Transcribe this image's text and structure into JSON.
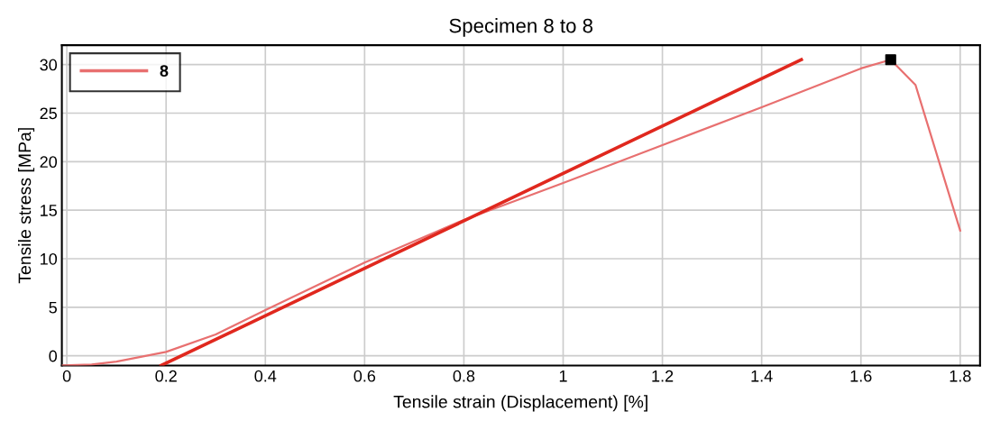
{
  "chart_data": {
    "type": "line",
    "title": "Specimen 8 to 8",
    "xlabel": "Tensile strain (Displacement) [%]",
    "ylabel": "Tensile stress [MPa]",
    "xlim": [
      -0.01,
      1.84
    ],
    "ylim": [
      -1,
      32
    ],
    "xticks": [
      0,
      0.2,
      0.4,
      0.6,
      0.8,
      {
        "value": 1.0,
        "label": "1"
      },
      1.2,
      1.4,
      1.6,
      1.8
    ],
    "yticks": [
      0,
      5,
      10,
      15,
      20,
      25,
      30
    ],
    "grid": true,
    "legend": "top left",
    "series": [
      {
        "name": "8",
        "color": "#e87070",
        "marker": "none",
        "line_style": "solid",
        "x": [
          -0.01,
          0.05,
          0.1,
          0.2,
          0.3,
          0.4,
          0.6,
          0.8,
          1.0,
          1.2,
          1.4,
          1.6,
          1.66,
          1.71,
          1.8
        ],
        "values": [
          -1.0,
          -0.9,
          -0.6,
          0.4,
          2.2,
          4.7,
          9.6,
          14.0,
          17.8,
          21.7,
          25.6,
          29.6,
          30.5,
          27.9,
          12.9
        ]
      },
      {
        "type": "line",
        "color": "#e0281e",
        "marker": "none",
        "line_style": "solid",
        "x": [
          0.19,
          1.48
        ],
        "values": [
          -1.0,
          30.5
        ]
      },
      {
        "type": "scatter",
        "color": "#000000",
        "marker": "square",
        "x": [
          1.66
        ],
        "values": [
          30.5
        ]
      }
    ]
  }
}
